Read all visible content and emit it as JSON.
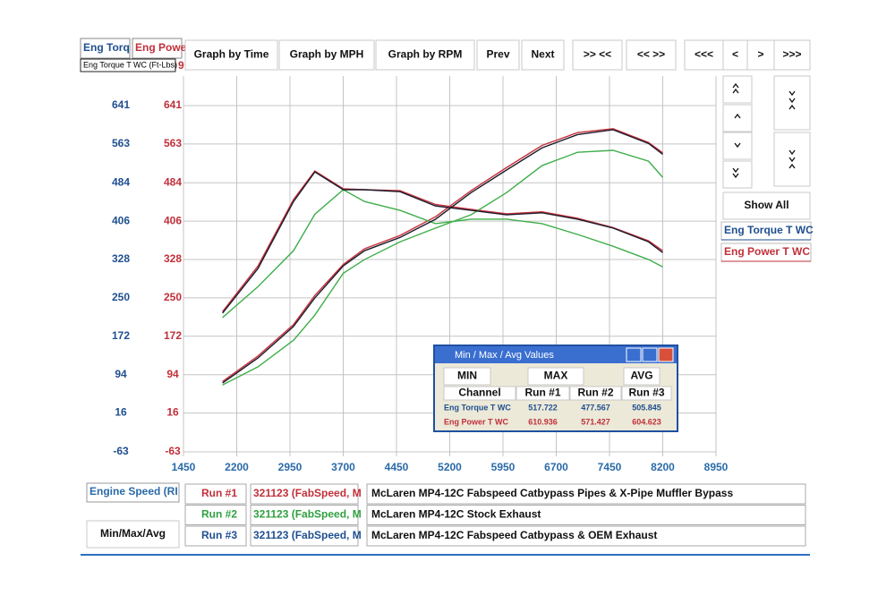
{
  "toolbar": {
    "channel_tabs": [
      "Eng Torq",
      "Eng Powe"
    ],
    "channel_label": "Eng Torque T WC (Ft-Lbs)",
    "channel_label_cut": "9",
    "buttons": [
      "Graph by Time",
      "Graph by MPH",
      "Graph by RPM",
      "Prev",
      "Next",
      ">> <<",
      "<< >>",
      "<<<",
      "<",
      ">",
      ">>>"
    ]
  },
  "side_panel": {
    "show_all": "Show All",
    "legend": [
      "Eng Torque T WC",
      "Eng Power T WC"
    ]
  },
  "chart_data": {
    "type": "line",
    "x": [
      2000,
      2500,
      3000,
      3300,
      3700,
      4000,
      4500,
      5000,
      5500,
      6000,
      6500,
      7000,
      7500,
      8000,
      8200
    ],
    "series": [
      {
        "color": "#c8313b",
        "values": [
          222,
          315,
          450,
          508,
          472,
          470,
          468,
          440,
          430,
          421,
          425,
          412,
          393,
          366,
          346
        ]
      },
      {
        "color": "#c8313b",
        "values": [
          80,
          132,
          196,
          255,
          318,
          350,
          377,
          415,
          468,
          515,
          560,
          586,
          594,
          566,
          545
        ]
      },
      {
        "color": "#3fae4a",
        "values": [
          210,
          273,
          346,
          420,
          470,
          446,
          428,
          401,
          410,
          410,
          401,
          379,
          355,
          328,
          313
        ]
      },
      {
        "color": "#3fae4a",
        "values": [
          73,
          110,
          164,
          215,
          300,
          328,
          364,
          392,
          419,
          464,
          519,
          546,
          550,
          528,
          495
        ]
      },
      {
        "color": "#1c1c2c",
        "values": [
          219,
          310,
          446,
          506,
          470,
          470,
          466,
          437,
          428,
          419,
          423,
          410,
          392,
          364,
          342
        ]
      },
      {
        "color": "#1c1c2c",
        "values": [
          77,
          128,
          192,
          250,
          315,
          346,
          373,
          410,
          464,
          510,
          555,
          582,
          592,
          564,
          542
        ]
      }
    ],
    "xlim": [
      1450,
      8950
    ],
    "xticks": [
      1450,
      2200,
      2950,
      3700,
      4450,
      5200,
      5950,
      6700,
      7450,
      8200,
      8950
    ],
    "ylim": [
      -63,
      701
    ],
    "yticks": [
      641,
      563,
      484,
      406,
      328,
      250,
      172,
      94,
      16,
      -63
    ],
    "grid": true
  },
  "dialog": {
    "title": "Min / Max / Avg Values",
    "buttons": [
      "MIN",
      "MAX",
      "AVG"
    ],
    "header": [
      "Channel",
      "Run #1",
      "Run #2",
      "Run #3"
    ],
    "rows": [
      [
        "Eng Torque T WC",
        "517.722",
        "477.567",
        "505.845"
      ],
      [
        "Eng Power T WC",
        "610.936",
        "571.427",
        "604.623"
      ]
    ]
  },
  "runs_panel": {
    "axis_channel": "Engine Speed (RI",
    "min_max_button": "Min/Max/Avg",
    "runs": [
      [
        "Run #1",
        "321123 (FabSpeed, M",
        "McLaren MP4-12C Fabspeed Catbypass Pipes & X-Pipe Muffler Bypass"
      ],
      [
        "Run #2",
        "321123 (FabSpeed, M",
        "McLaren MP4-12C Stock Exhaust"
      ],
      [
        "Run #3",
        "321123 (FabSpeed, M",
        "McLaren MP4-12C Fabspeed Catbypass & OEM Exhaust"
      ]
    ]
  }
}
